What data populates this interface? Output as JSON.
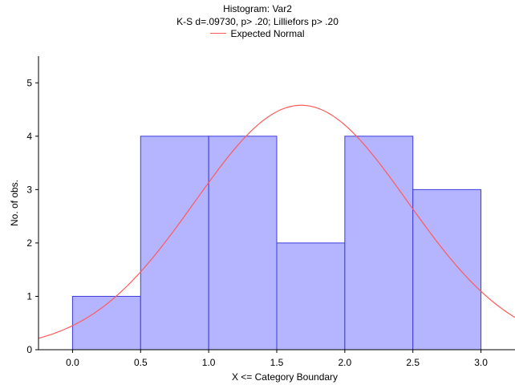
{
  "chart_data": {
    "type": "bar",
    "title": "Histogram: Var2",
    "subtitle": "K-S d=.09730, p> .20; Lilliefors p> .20",
    "xlabel": "X <= Category Boundary",
    "ylabel": "No. of obs.",
    "xlim": [
      -0.25,
      3.25
    ],
    "ylim": [
      0,
      5.5
    ],
    "xticks": [
      "0.0",
      "0.5",
      "1.0",
      "1.5",
      "2.0",
      "2.5",
      "3.0"
    ],
    "xtick_values": [
      0.0,
      0.5,
      1.0,
      1.5,
      2.0,
      2.5,
      3.0
    ],
    "yticks": [
      "0",
      "1",
      "2",
      "3",
      "4",
      "5"
    ],
    "ytick_values": [
      0,
      1,
      2,
      3,
      4,
      5
    ],
    "bins": [
      {
        "from": 0.0,
        "to": 0.5,
        "count": 1
      },
      {
        "from": 0.5,
        "to": 1.0,
        "count": 4
      },
      {
        "from": 1.0,
        "to": 1.5,
        "count": 4
      },
      {
        "from": 1.5,
        "to": 2.0,
        "count": 2
      },
      {
        "from": 2.0,
        "to": 2.5,
        "count": 4
      },
      {
        "from": 2.5,
        "to": 3.0,
        "count": 3
      }
    ],
    "expected_normal": {
      "name": "Expected Normal",
      "mean": 1.68,
      "sd": 0.78,
      "peak": 4.58
    },
    "legend_position": "top",
    "grid": false,
    "colors": {
      "bar_fill": "#b4b4ff",
      "bar_stroke": "#3c3cdc",
      "curve": "#ff5a5a",
      "axis": "#000000"
    }
  }
}
